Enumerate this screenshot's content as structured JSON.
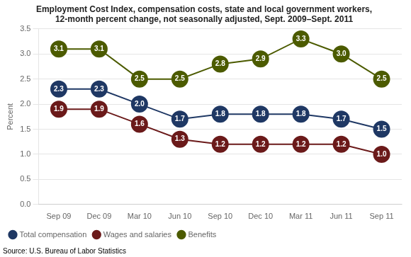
{
  "chart_data": {
    "type": "line",
    "title": "Employment Cost Index, compensation costs, state and local government workers,\n12-month percent change, not seasonally adjusted, Sept. 2009–Sept. 2011",
    "ylabel": "Percent",
    "source": "Source: U.S. Bureau of Labor Statistics",
    "categories": [
      "Sep 09",
      "Dec 09",
      "Mar 10",
      "Jun 10",
      "Sep 10",
      "Dec 10",
      "Mar 11",
      "Jun 11",
      "Sep 11"
    ],
    "series": [
      {
        "name": "Total compensation",
        "color": "#1F3864",
        "values": [
          2.3,
          2.3,
          2.0,
          1.7,
          1.8,
          1.8,
          1.8,
          1.7,
          1.5
        ],
        "value_labels": [
          "2.3",
          "2.3",
          "2.0",
          "1.7",
          "1.8",
          "1.8",
          "1.8",
          "1.7",
          "1.5"
        ]
      },
      {
        "name": "Wages and salaries",
        "color": "#6B1A1A",
        "values": [
          1.9,
          1.9,
          1.6,
          1.3,
          1.2,
          1.2,
          1.2,
          1.2,
          1.0
        ],
        "value_labels": [
          "1.9",
          "1.9",
          "1.6",
          "1.3",
          "1.2",
          "1.2",
          "1.2",
          "1.2",
          "1.0"
        ]
      },
      {
        "name": "Benefits",
        "color": "#4C5B00",
        "values": [
          3.1,
          3.1,
          2.5,
          2.5,
          2.8,
          2.9,
          3.3,
          3.0,
          2.5
        ],
        "value_labels": [
          "3.1",
          "3.1",
          "2.5",
          "2.5",
          "2.8",
          "2.9",
          "3.3",
          "3.0",
          "2.5"
        ]
      }
    ],
    "ylim": [
      0.0,
      3.5
    ],
    "yticks": [
      {
        "value": 0,
        "label": "0.0"
      },
      0.5,
      {
        "value": 1,
        "label": "1.0"
      },
      1.5,
      {
        "value": 2,
        "label": "2.0"
      },
      2.5,
      {
        "value": 3,
        "label": "3.0"
      },
      3.5
    ],
    "grid": true,
    "legend": "lower left",
    "marker": "circle",
    "data_labels": true
  }
}
